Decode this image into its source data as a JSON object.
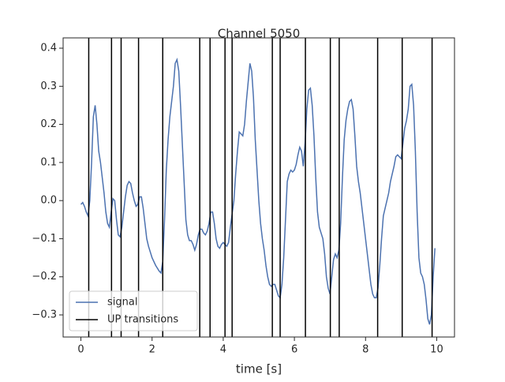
{
  "chart_data": {
    "type": "line",
    "title": "Channel 5050",
    "xlabel": "time [s]",
    "x": [
      0.0,
      0.05,
      0.1,
      0.15,
      0.2,
      0.25,
      0.3,
      0.35,
      0.4,
      0.45,
      0.5,
      0.55,
      0.6,
      0.65,
      0.7,
      0.75,
      0.8,
      0.85,
      0.9,
      0.95,
      1.0,
      1.05,
      1.1,
      1.15,
      1.2,
      1.25,
      1.3,
      1.35,
      1.4,
      1.45,
      1.5,
      1.55,
      1.6,
      1.65,
      1.7,
      1.75,
      1.8,
      1.85,
      1.9,
      2.0,
      2.1,
      2.2,
      2.25,
      2.3,
      2.35,
      2.4,
      2.45,
      2.5,
      2.55,
      2.6,
      2.65,
      2.7,
      2.75,
      2.8,
      2.85,
      2.9,
      2.95,
      3.0,
      3.05,
      3.1,
      3.15,
      3.2,
      3.25,
      3.3,
      3.35,
      3.4,
      3.45,
      3.5,
      3.55,
      3.6,
      3.65,
      3.7,
      3.75,
      3.8,
      3.85,
      3.9,
      3.95,
      4.0,
      4.05,
      4.1,
      4.15,
      4.2,
      4.3,
      4.35,
      4.4,
      4.45,
      4.5,
      4.55,
      4.6,
      4.65,
      4.7,
      4.75,
      4.8,
      4.85,
      4.9,
      4.95,
      5.0,
      5.05,
      5.1,
      5.15,
      5.2,
      5.25,
      5.3,
      5.35,
      5.4,
      5.45,
      5.5,
      5.55,
      5.6,
      5.65,
      5.7,
      5.75,
      5.8,
      5.85,
      5.9,
      5.95,
      6.0,
      6.05,
      6.1,
      6.15,
      6.2,
      6.25,
      6.3,
      6.35,
      6.4,
      6.45,
      6.5,
      6.55,
      6.6,
      6.65,
      6.7,
      6.8,
      6.85,
      6.9,
      6.95,
      7.0,
      7.05,
      7.1,
      7.15,
      7.2,
      7.25,
      7.3,
      7.35,
      7.4,
      7.45,
      7.5,
      7.55,
      7.6,
      7.65,
      7.7,
      7.75,
      7.8,
      7.85,
      7.9,
      7.95,
      8.0,
      8.05,
      8.1,
      8.15,
      8.2,
      8.25,
      8.3,
      8.35,
      8.4,
      8.45,
      8.5,
      8.55,
      8.6,
      8.65,
      8.7,
      8.8,
      8.85,
      8.9,
      8.95,
      9.0,
      9.05,
      9.1,
      9.15,
      9.2,
      9.25,
      9.3,
      9.35,
      9.4,
      9.45,
      9.5,
      9.55,
      9.6,
      9.65,
      9.7,
      9.75,
      9.8,
      9.85,
      9.9,
      9.95
    ],
    "series": [
      {
        "name": "signal",
        "color": "#4c72b0",
        "values": [
          -0.01,
          -0.005,
          -0.015,
          -0.03,
          -0.04,
          0.0,
          0.1,
          0.22,
          0.25,
          0.2,
          0.13,
          0.1,
          0.06,
          0.02,
          -0.03,
          -0.06,
          -0.07,
          -0.03,
          0.005,
          0.0,
          -0.05,
          -0.09,
          -0.095,
          -0.07,
          -0.03,
          0.01,
          0.04,
          0.05,
          0.045,
          0.02,
          0.0,
          -0.015,
          -0.01,
          0.01,
          0.01,
          -0.02,
          -0.06,
          -0.1,
          -0.12,
          -0.15,
          -0.17,
          -0.185,
          -0.19,
          -0.16,
          -0.05,
          0.08,
          0.16,
          0.22,
          0.26,
          0.3,
          0.36,
          0.37,
          0.34,
          0.25,
          0.15,
          0.05,
          -0.05,
          -0.09,
          -0.105,
          -0.105,
          -0.115,
          -0.13,
          -0.115,
          -0.09,
          -0.075,
          -0.075,
          -0.085,
          -0.09,
          -0.08,
          -0.06,
          -0.03,
          -0.03,
          -0.06,
          -0.1,
          -0.12,
          -0.125,
          -0.115,
          -0.11,
          -0.115,
          -0.12,
          -0.11,
          -0.07,
          0.0,
          0.07,
          0.13,
          0.18,
          0.175,
          0.17,
          0.2,
          0.26,
          0.31,
          0.36,
          0.34,
          0.27,
          0.16,
          0.08,
          0.0,
          -0.06,
          -0.1,
          -0.13,
          -0.17,
          -0.2,
          -0.22,
          -0.225,
          -0.22,
          -0.22,
          -0.235,
          -0.25,
          -0.255,
          -0.22,
          -0.15,
          -0.05,
          0.05,
          0.07,
          0.08,
          0.075,
          0.08,
          0.095,
          0.12,
          0.14,
          0.13,
          0.09,
          0.15,
          0.24,
          0.29,
          0.295,
          0.25,
          0.17,
          0.06,
          -0.03,
          -0.07,
          -0.1,
          -0.14,
          -0.2,
          -0.23,
          -0.245,
          -0.2,
          -0.155,
          -0.14,
          -0.15,
          -0.13,
          -0.06,
          0.06,
          0.16,
          0.21,
          0.24,
          0.26,
          0.265,
          0.24,
          0.17,
          0.09,
          0.05,
          0.02,
          -0.02,
          -0.06,
          -0.1,
          -0.14,
          -0.18,
          -0.22,
          -0.245,
          -0.255,
          -0.255,
          -0.23,
          -0.17,
          -0.1,
          -0.04,
          -0.02,
          0.0,
          0.02,
          0.05,
          0.09,
          0.115,
          0.12,
          0.115,
          0.11,
          0.15,
          0.19,
          0.21,
          0.24,
          0.3,
          0.305,
          0.25,
          0.13,
          -0.03,
          -0.15,
          -0.19,
          -0.2,
          -0.22,
          -0.26,
          -0.31,
          -0.325,
          -0.3,
          -0.2,
          -0.125
        ]
      }
    ],
    "vlines": {
      "name": "UP transitions",
      "color": "#000000",
      "x": [
        0.22,
        0.86,
        1.13,
        1.62,
        2.3,
        3.34,
        3.63,
        4.05,
        4.25,
        5.38,
        5.6,
        6.31,
        7.01,
        7.26,
        8.34,
        9.03,
        9.87
      ]
    },
    "xlim": [
      -0.5,
      10.5
    ],
    "xticks": [
      0,
      2,
      4,
      6,
      8,
      10
    ],
    "ylim": [
      -0.358,
      0.427
    ],
    "yticks": [
      {
        "value": -0.3,
        "label": "−0.3"
      },
      {
        "value": -0.2,
        "label": "−0.2"
      },
      {
        "value": -0.1,
        "label": "−0.1"
      },
      {
        "value": 0,
        "label": "0.0"
      },
      0.1,
      0.2,
      0.3,
      0.4
    ],
    "legend": "lower left"
  }
}
